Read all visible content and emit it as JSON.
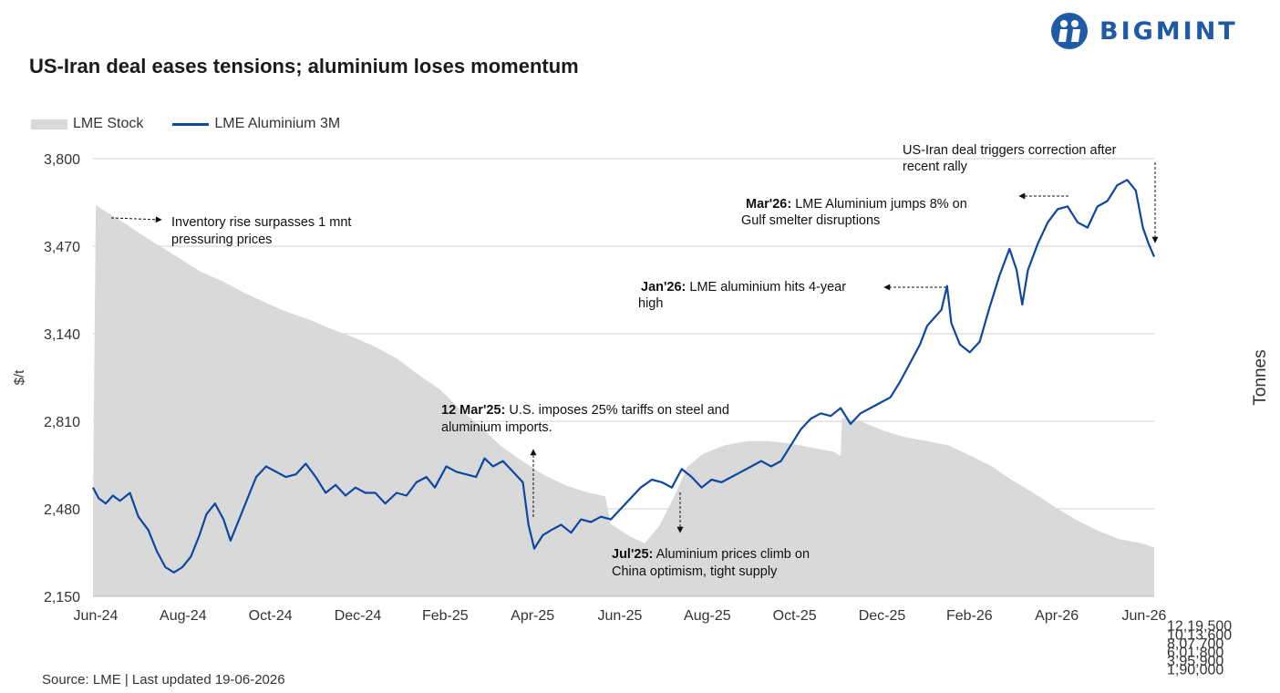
{
  "title": "US-Iran deal eases tensions; aluminium loses momentum",
  "brand": {
    "name": "BIGMINT",
    "color": "#1f5aa6"
  },
  "source": "Source: LME | Last updated 19-06-2026",
  "colors": {
    "line": "#0d47a1",
    "area": "#d9d9d9",
    "grid": "#d0d0d0"
  },
  "chart_data": {
    "type": "line",
    "x_labels": [
      "Jun-24",
      "Aug-24",
      "Oct-24",
      "Dec-24",
      "Feb-25",
      "Apr-25",
      "Jun-25",
      "Aug-25",
      "Oct-25",
      "Dec-25",
      "Feb-26",
      "Apr-26",
      "Jun-26"
    ],
    "ylabel": "$/t",
    "ylabel_right": "Tonnes",
    "y_ticks": [
      "2,150",
      "2,480",
      "2,810",
      "3,140",
      "3,470",
      "3,800"
    ],
    "y_right_ticks": [
      "1,90,000",
      "3,95,900",
      "6,01,800",
      "8,07,700",
      "10,13,600",
      "12,19,500"
    ],
    "ylim": [
      2150,
      3800
    ],
    "ylim_right": [
      1900000,
      12195000
    ],
    "grid": "horizontal",
    "legend_position": "top-left",
    "series": [
      {
        "name": "LME Stock",
        "kind": "area",
        "axis": "right",
        "points": [
          [
            "2024-06-01",
            4000000
          ],
          [
            "2024-06-03",
            11100000
          ],
          [
            "2024-06-10",
            10950000
          ],
          [
            "2024-06-20",
            10750000
          ],
          [
            "2024-07-01",
            10500000
          ],
          [
            "2024-07-15",
            10200000
          ],
          [
            "2024-08-01",
            9850000
          ],
          [
            "2024-08-15",
            9550000
          ],
          [
            "2024-09-01",
            9300000
          ],
          [
            "2024-09-15",
            9050000
          ],
          [
            "2024-10-01",
            8800000
          ],
          [
            "2024-10-15",
            8600000
          ],
          [
            "2024-11-01",
            8400000
          ],
          [
            "2024-11-15",
            8200000
          ],
          [
            "2024-12-01",
            8000000
          ],
          [
            "2024-12-15",
            7800000
          ],
          [
            "2025-01-01",
            7500000
          ],
          [
            "2025-01-15",
            7150000
          ],
          [
            "2025-02-01",
            6750000
          ],
          [
            "2025-02-15",
            6300000
          ],
          [
            "2025-03-01",
            5900000
          ],
          [
            "2025-03-15",
            5450000
          ],
          [
            "2025-04-01",
            5050000
          ],
          [
            "2025-04-15",
            4750000
          ],
          [
            "2025-05-01",
            4500000
          ],
          [
            "2025-05-15",
            4350000
          ],
          [
            "2025-05-28",
            4250000
          ],
          [
            "2025-06-01",
            3600000
          ],
          [
            "2025-06-15",
            3300000
          ],
          [
            "2025-06-25",
            3150000
          ],
          [
            "2025-07-05",
            3550000
          ],
          [
            "2025-07-15",
            4200000
          ],
          [
            "2025-07-25",
            4950000
          ],
          [
            "2025-08-05",
            5250000
          ],
          [
            "2025-08-20",
            5450000
          ],
          [
            "2025-09-05",
            5550000
          ],
          [
            "2025-09-20",
            5550000
          ],
          [
            "2025-10-05",
            5500000
          ],
          [
            "2025-10-20",
            5400000
          ],
          [
            "2025-11-05",
            5300000
          ],
          [
            "2025-11-10",
            5200000
          ],
          [
            "2025-11-11",
            6100000
          ],
          [
            "2025-11-25",
            6000000
          ],
          [
            "2025-12-10",
            5800000
          ],
          [
            "2025-12-25",
            5650000
          ],
          [
            "2026-01-10",
            5550000
          ],
          [
            "2026-01-25",
            5450000
          ],
          [
            "2026-02-10",
            5200000
          ],
          [
            "2026-02-25",
            4950000
          ],
          [
            "2026-03-10",
            4650000
          ],
          [
            "2026-03-25",
            4350000
          ],
          [
            "2026-04-10",
            4000000
          ],
          [
            "2026-04-25",
            3700000
          ],
          [
            "2026-05-10",
            3450000
          ],
          [
            "2026-05-25",
            3250000
          ],
          [
            "2026-06-10",
            3150000
          ],
          [
            "2026-06-19",
            3050000
          ]
        ]
      },
      {
        "name": "LME Aluminium 3M",
        "kind": "line",
        "axis": "left",
        "points": [
          [
            "2024-06-01",
            2560
          ],
          [
            "2024-06-05",
            2520
          ],
          [
            "2024-06-10",
            2500
          ],
          [
            "2024-06-15",
            2530
          ],
          [
            "2024-06-20",
            2510
          ],
          [
            "2024-06-27",
            2540
          ],
          [
            "2024-07-03",
            2450
          ],
          [
            "2024-07-10",
            2400
          ],
          [
            "2024-07-16",
            2320
          ],
          [
            "2024-07-22",
            2260
          ],
          [
            "2024-07-28",
            2240
          ],
          [
            "2024-08-03",
            2260
          ],
          [
            "2024-08-09",
            2300
          ],
          [
            "2024-08-15",
            2380
          ],
          [
            "2024-08-20",
            2460
          ],
          [
            "2024-08-26",
            2500
          ],
          [
            "2024-09-01",
            2440
          ],
          [
            "2024-09-06",
            2360
          ],
          [
            "2024-09-12",
            2440
          ],
          [
            "2024-09-18",
            2520
          ],
          [
            "2024-09-24",
            2600
          ],
          [
            "2024-10-01",
            2640
          ],
          [
            "2024-10-08",
            2620
          ],
          [
            "2024-10-15",
            2600
          ],
          [
            "2024-10-22",
            2610
          ],
          [
            "2024-10-29",
            2650
          ],
          [
            "2024-11-05",
            2600
          ],
          [
            "2024-11-12",
            2540
          ],
          [
            "2024-11-19",
            2570
          ],
          [
            "2024-11-26",
            2530
          ],
          [
            "2024-12-03",
            2560
          ],
          [
            "2024-12-10",
            2540
          ],
          [
            "2024-12-17",
            2540
          ],
          [
            "2024-12-24",
            2500
          ],
          [
            "2025-01-01",
            2540
          ],
          [
            "2025-01-08",
            2530
          ],
          [
            "2025-01-15",
            2580
          ],
          [
            "2025-01-22",
            2600
          ],
          [
            "2025-01-28",
            2560
          ],
          [
            "2025-02-05",
            2640
          ],
          [
            "2025-02-12",
            2620
          ],
          [
            "2025-02-19",
            2610
          ],
          [
            "2025-02-26",
            2600
          ],
          [
            "2025-03-04",
            2670
          ],
          [
            "2025-03-10",
            2640
          ],
          [
            "2025-03-17",
            2660
          ],
          [
            "2025-03-24",
            2620
          ],
          [
            "2025-03-31",
            2580
          ],
          [
            "2025-04-04",
            2420
          ],
          [
            "2025-04-08",
            2330
          ],
          [
            "2025-04-14",
            2380
          ],
          [
            "2025-04-20",
            2400
          ],
          [
            "2025-04-27",
            2420
          ],
          [
            "2025-05-04",
            2390
          ],
          [
            "2025-05-11",
            2440
          ],
          [
            "2025-05-18",
            2430
          ],
          [
            "2025-05-25",
            2450
          ],
          [
            "2025-06-01",
            2440
          ],
          [
            "2025-06-08",
            2480
          ],
          [
            "2025-06-15",
            2520
          ],
          [
            "2025-06-22",
            2560
          ],
          [
            "2025-06-30",
            2590
          ],
          [
            "2025-07-07",
            2580
          ],
          [
            "2025-07-14",
            2560
          ],
          [
            "2025-07-21",
            2630
          ],
          [
            "2025-07-28",
            2600
          ],
          [
            "2025-08-04",
            2560
          ],
          [
            "2025-08-11",
            2590
          ],
          [
            "2025-08-18",
            2580
          ],
          [
            "2025-08-25",
            2600
          ],
          [
            "2025-09-01",
            2620
          ],
          [
            "2025-09-08",
            2640
          ],
          [
            "2025-09-15",
            2660
          ],
          [
            "2025-09-22",
            2640
          ],
          [
            "2025-09-29",
            2660
          ],
          [
            "2025-10-06",
            2720
          ],
          [
            "2025-10-13",
            2780
          ],
          [
            "2025-10-20",
            2820
          ],
          [
            "2025-10-27",
            2840
          ],
          [
            "2025-11-03",
            2830
          ],
          [
            "2025-11-10",
            2860
          ],
          [
            "2025-11-17",
            2800
          ],
          [
            "2025-11-24",
            2840
          ],
          [
            "2025-12-01",
            2860
          ],
          [
            "2025-12-08",
            2880
          ],
          [
            "2025-12-15",
            2900
          ],
          [
            "2025-12-22",
            2960
          ],
          [
            "2025-12-29",
            3030
          ],
          [
            "2026-01-05",
            3100
          ],
          [
            "2026-01-10",
            3170
          ],
          [
            "2026-01-15",
            3200
          ],
          [
            "2026-01-20",
            3230
          ],
          [
            "2026-01-24",
            3320
          ],
          [
            "2026-01-27",
            3180
          ],
          [
            "2026-02-02",
            3100
          ],
          [
            "2026-02-09",
            3070
          ],
          [
            "2026-02-16",
            3110
          ],
          [
            "2026-02-23",
            3240
          ],
          [
            "2026-03-02",
            3360
          ],
          [
            "2026-03-09",
            3460
          ],
          [
            "2026-03-14",
            3380
          ],
          [
            "2026-03-18",
            3250
          ],
          [
            "2026-03-22",
            3380
          ],
          [
            "2026-03-29",
            3480
          ],
          [
            "2026-04-05",
            3560
          ],
          [
            "2026-04-12",
            3610
          ],
          [
            "2026-04-19",
            3620
          ],
          [
            "2026-04-26",
            3560
          ],
          [
            "2026-05-03",
            3540
          ],
          [
            "2026-05-10",
            3620
          ],
          [
            "2026-05-17",
            3640
          ],
          [
            "2026-05-24",
            3700
          ],
          [
            "2026-05-31",
            3720
          ],
          [
            "2026-06-06",
            3680
          ],
          [
            "2026-06-11",
            3540
          ],
          [
            "2026-06-15",
            3480
          ],
          [
            "2026-06-19",
            3430
          ]
        ]
      }
    ],
    "annotations": [
      {
        "bold": "",
        "text": "Inventory rise surpasses 1 mnt",
        "text2": "pressuring prices"
      },
      {
        "bold": "12 Mar'25:",
        "text": " U.S. imposes 25% tariffs on steel and",
        "text2": "aluminium imports."
      },
      {
        "bold": "Jul'25:",
        "text": " Aluminium prices climb on",
        "text2": "China optimism, tight supply"
      },
      {
        "bold": "Jan'26:",
        "text": " LME aluminium hits 4-year",
        "text2": "high"
      },
      {
        "bold": "Mar'26:",
        "text": " LME Aluminium jumps 8% on",
        "text2": "Gulf smelter disruptions"
      },
      {
        "bold": "",
        "text": "US-Iran deal triggers correction after",
        "text2": "recent rally"
      }
    ]
  }
}
